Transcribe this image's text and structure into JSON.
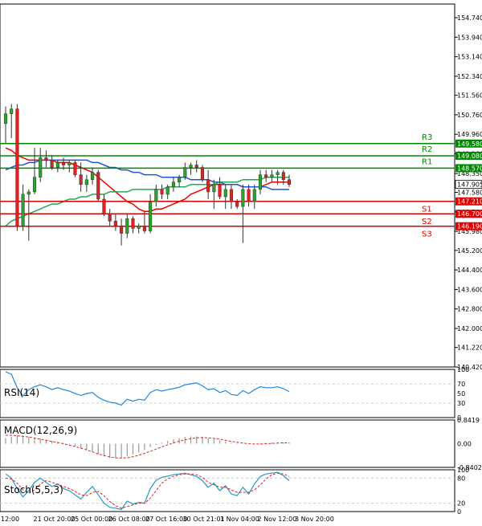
{
  "chart_data": [
    {
      "type": "candlestick",
      "panel": "price",
      "y_range": [
        140.42,
        155.3
      ],
      "y_ticks": [
        "154.740",
        "153.940",
        "153.140",
        "152.340",
        "151.560",
        "150.760",
        "149.960",
        "149.160",
        "148.350",
        "147.580",
        "146.780",
        "145.980",
        "145.200",
        "144.400",
        "143.600",
        "142.800",
        "142.000",
        "141.220",
        "140.420"
      ],
      "x_labels": [
        "12:00",
        "21 Oct 20:00",
        "25 Oct 00:00",
        "26 Oct 08:00",
        "27 Oct 16:00",
        "30 Oct 21:01",
        "1 Nov 04:00",
        "2 Nov 12:00",
        "3 Nov 20:00"
      ],
      "candles": [
        {
          "o": 150.4,
          "h": 151.1,
          "l": 149.6,
          "c": 150.8
        },
        {
          "o": 150.8,
          "h": 151.2,
          "l": 149.8,
          "c": 151.0
        },
        {
          "o": 151.0,
          "h": 151.2,
          "l": 146.0,
          "c": 146.2
        },
        {
          "o": 146.2,
          "h": 147.9,
          "l": 146.0,
          "c": 147.5
        },
        {
          "o": 147.5,
          "h": 147.7,
          "l": 145.6,
          "c": 147.6
        },
        {
          "o": 147.6,
          "h": 149.4,
          "l": 147.5,
          "c": 148.2
        },
        {
          "o": 148.2,
          "h": 149.4,
          "l": 148.0,
          "c": 149.0
        },
        {
          "o": 149.0,
          "h": 149.3,
          "l": 148.6,
          "c": 148.9
        },
        {
          "o": 148.9,
          "h": 149.1,
          "l": 148.5,
          "c": 148.6
        },
        {
          "o": 148.6,
          "h": 148.9,
          "l": 148.4,
          "c": 148.8
        },
        {
          "o": 148.8,
          "h": 149.0,
          "l": 148.5,
          "c": 148.7
        },
        {
          "o": 148.7,
          "h": 148.9,
          "l": 148.4,
          "c": 148.8
        },
        {
          "o": 148.8,
          "h": 148.9,
          "l": 148.2,
          "c": 148.3
        },
        {
          "o": 148.3,
          "h": 148.8,
          "l": 147.6,
          "c": 147.9
        },
        {
          "o": 147.9,
          "h": 148.3,
          "l": 147.6,
          "c": 148.1
        },
        {
          "o": 148.1,
          "h": 148.6,
          "l": 147.9,
          "c": 148.4
        },
        {
          "o": 148.4,
          "h": 148.5,
          "l": 147.2,
          "c": 147.3
        },
        {
          "o": 147.3,
          "h": 147.5,
          "l": 146.6,
          "c": 146.7
        },
        {
          "o": 146.7,
          "h": 146.9,
          "l": 146.2,
          "c": 146.4
        },
        {
          "o": 146.4,
          "h": 146.7,
          "l": 146.0,
          "c": 146.2
        },
        {
          "o": 146.2,
          "h": 146.5,
          "l": 145.4,
          "c": 145.9
        },
        {
          "o": 145.9,
          "h": 146.7,
          "l": 145.7,
          "c": 146.5
        },
        {
          "o": 146.5,
          "h": 146.6,
          "l": 145.9,
          "c": 146.1
        },
        {
          "o": 146.1,
          "h": 146.3,
          "l": 145.9,
          "c": 146.2
        },
        {
          "o": 146.2,
          "h": 146.8,
          "l": 145.9,
          "c": 146.0
        },
        {
          "o": 146.0,
          "h": 147.5,
          "l": 145.9,
          "c": 147.2
        },
        {
          "o": 147.2,
          "h": 147.9,
          "l": 147.0,
          "c": 147.7
        },
        {
          "o": 147.7,
          "h": 147.9,
          "l": 147.3,
          "c": 147.5
        },
        {
          "o": 147.5,
          "h": 147.9,
          "l": 147.3,
          "c": 147.8
        },
        {
          "o": 147.8,
          "h": 148.2,
          "l": 147.6,
          "c": 148.0
        },
        {
          "o": 148.0,
          "h": 148.3,
          "l": 147.8,
          "c": 148.2
        },
        {
          "o": 148.2,
          "h": 148.8,
          "l": 148.1,
          "c": 148.6
        },
        {
          "o": 148.6,
          "h": 148.8,
          "l": 148.3,
          "c": 148.7
        },
        {
          "o": 148.7,
          "h": 148.9,
          "l": 148.4,
          "c": 148.6
        },
        {
          "o": 148.6,
          "h": 148.7,
          "l": 148.0,
          "c": 148.1
        },
        {
          "o": 148.1,
          "h": 148.5,
          "l": 147.3,
          "c": 147.6
        },
        {
          "o": 147.6,
          "h": 148.1,
          "l": 146.9,
          "c": 147.9
        },
        {
          "o": 147.9,
          "h": 148.2,
          "l": 147.3,
          "c": 147.4
        },
        {
          "o": 147.4,
          "h": 147.9,
          "l": 146.9,
          "c": 147.7
        },
        {
          "o": 147.7,
          "h": 147.9,
          "l": 146.9,
          "c": 147.2
        },
        {
          "o": 147.2,
          "h": 147.3,
          "l": 146.9,
          "c": 147.0
        },
        {
          "o": 147.0,
          "h": 147.9,
          "l": 145.5,
          "c": 147.7
        },
        {
          "o": 147.7,
          "h": 147.9,
          "l": 147.0,
          "c": 147.2
        },
        {
          "o": 147.2,
          "h": 147.9,
          "l": 146.9,
          "c": 147.7
        },
        {
          "o": 147.7,
          "h": 148.5,
          "l": 147.5,
          "c": 148.3
        },
        {
          "o": 148.3,
          "h": 148.5,
          "l": 148.0,
          "c": 148.2
        },
        {
          "o": 148.2,
          "h": 148.5,
          "l": 148.0,
          "c": 148.3
        },
        {
          "o": 148.3,
          "h": 148.5,
          "l": 147.9,
          "c": 148.4
        },
        {
          "o": 148.4,
          "h": 148.5,
          "l": 147.9,
          "c": 148.1
        },
        {
          "o": 148.1,
          "h": 148.3,
          "l": 147.8,
          "c": 147.9
        }
      ],
      "moving_averages": [
        {
          "name": "",
          "color": "#ee0000",
          "values": [
            149.4,
            149.3,
            149.1,
            149.0,
            148.9,
            148.9,
            148.9,
            148.9,
            148.9,
            148.8,
            148.8,
            148.8,
            148.7,
            148.6,
            148.5,
            148.4,
            148.2,
            148.0,
            147.8,
            147.6,
            147.4,
            147.2,
            147.1,
            146.9,
            146.8,
            146.8,
            146.9,
            146.9,
            147.0,
            147.1,
            147.2,
            147.3,
            147.5,
            147.6,
            147.7,
            147.8,
            147.9,
            147.9,
            147.9,
            147.9,
            147.9,
            147.8,
            147.8,
            147.8,
            147.8,
            147.9,
            148.0,
            148.0,
            148.0,
            148.0
          ]
        },
        {
          "name": "",
          "color": "#2255dd",
          "values": [
            148.5,
            148.6,
            148.7,
            148.7,
            148.8,
            148.8,
            148.9,
            148.9,
            148.9,
            148.9,
            148.9,
            148.9,
            148.9,
            148.9,
            148.9,
            148.8,
            148.8,
            148.7,
            148.6,
            148.6,
            148.5,
            148.5,
            148.4,
            148.4,
            148.3,
            148.3,
            148.3,
            148.2,
            148.2,
            148.2,
            148.2,
            148.2,
            148.1,
            148.1,
            148.1,
            148.1,
            148.0,
            148.0,
            147.9,
            147.9,
            147.9,
            147.8,
            147.8,
            147.8,
            147.8,
            147.8,
            147.7,
            147.7,
            147.7,
            147.7
          ]
        },
        {
          "name": "",
          "color": "#22aa55",
          "values": [
            146.2,
            146.4,
            146.5,
            146.6,
            146.7,
            146.8,
            146.9,
            147.0,
            147.1,
            147.1,
            147.2,
            147.3,
            147.3,
            147.4,
            147.4,
            147.5,
            147.5,
            147.5,
            147.6,
            147.6,
            147.6,
            147.6,
            147.7,
            147.7,
            147.7,
            147.7,
            147.7,
            147.7,
            147.8,
            147.8,
            147.8,
            147.8,
            147.9,
            147.9,
            147.9,
            147.9,
            147.9,
            148.0,
            148.0,
            148.0,
            148.0,
            148.1,
            148.1,
            148.1,
            148.1,
            148.2,
            148.2,
            148.2,
            148.2,
            148.2
          ]
        }
      ],
      "levels": [
        {
          "name": "R3",
          "price": 149.58,
          "value_label": "149.580",
          "color": "#008800"
        },
        {
          "name": "R2",
          "price": 149.08,
          "value_label": "149.080",
          "color": "#008800"
        },
        {
          "name": "R1",
          "price": 148.57,
          "value_label": "148.570",
          "color": "#008800"
        },
        {
          "name": "S1",
          "price": 147.21,
          "value_label": "147.210",
          "color": "#dd0000"
        },
        {
          "name": "S2",
          "price": 146.7,
          "value_label": "146.700",
          "color": "#dd0000"
        },
        {
          "name": "S3",
          "price": 146.19,
          "value_label": "146.190",
          "color": "#dd0000"
        }
      ],
      "current_price": {
        "value": 147.905,
        "label": "147.905"
      }
    },
    {
      "type": "line",
      "panel": "rsi",
      "title": "RSI(14)",
      "y_range": [
        0,
        100
      ],
      "y_ticks": [
        "100",
        "70",
        "50",
        "30",
        "0"
      ],
      "values": [
        95,
        90,
        62,
        45,
        58,
        64,
        68,
        64,
        58,
        62,
        58,
        55,
        50,
        46,
        50,
        52,
        42,
        36,
        32,
        30,
        26,
        38,
        34,
        38,
        36,
        52,
        58,
        55,
        58,
        60,
        63,
        68,
        70,
        72,
        66,
        58,
        60,
        52,
        56,
        48,
        46,
        56,
        50,
        58,
        64,
        62,
        62,
        64,
        60,
        54
      ]
    },
    {
      "type": "line",
      "panel": "macd",
      "title": "MACD(12,26,9)",
      "y_range": [
        -0.8402,
        0.8419
      ],
      "y_ticks": [
        "0.8419",
        "0.00",
        "-0.8402"
      ],
      "histogram": [
        0.2,
        0.25,
        0.3,
        0.28,
        0.25,
        0.22,
        0.18,
        0.15,
        0.1,
        0.06,
        0.02,
        -0.03,
        -0.08,
        -0.15,
        -0.22,
        -0.3,
        -0.38,
        -0.45,
        -0.5,
        -0.52,
        -0.5,
        -0.45,
        -0.38,
        -0.3,
        -0.22,
        -0.12,
        -0.04,
        0.04,
        0.1,
        0.15,
        0.2,
        0.24,
        0.26,
        0.26,
        0.24,
        0.2,
        0.16,
        0.12,
        0.08,
        0.04,
        0.02,
        0.01,
        0.0,
        0.0,
        0.02,
        0.03,
        0.04,
        0.05,
        0.05,
        0.04
      ],
      "signal": [
        0.3,
        0.3,
        0.28,
        0.26,
        0.24,
        0.2,
        0.16,
        0.12,
        0.08,
        0.04,
        0.0,
        -0.05,
        -0.1,
        -0.16,
        -0.22,
        -0.29,
        -0.36,
        -0.42,
        -0.47,
        -0.5,
        -0.51,
        -0.5,
        -0.46,
        -0.41,
        -0.34,
        -0.27,
        -0.19,
        -0.11,
        -0.04,
        0.03,
        0.09,
        0.14,
        0.18,
        0.21,
        0.22,
        0.21,
        0.19,
        0.16,
        0.12,
        0.08,
        0.05,
        0.02,
        0.0,
        -0.01,
        -0.01,
        0.0,
        0.01,
        0.02,
        0.03,
        0.03
      ]
    },
    {
      "type": "line",
      "panel": "stoch",
      "title": "Stoch(5,5,3)",
      "y_range": [
        0,
        100
      ],
      "y_ticks": [
        "100",
        "80",
        "20",
        "0"
      ],
      "k_line": [
        90,
        80,
        55,
        35,
        50,
        70,
        80,
        70,
        60,
        66,
        55,
        50,
        40,
        30,
        46,
        60,
        40,
        20,
        10,
        8,
        5,
        25,
        18,
        22,
        20,
        55,
        75,
        82,
        85,
        88,
        90,
        92,
        88,
        84,
        74,
        58,
        68,
        50,
        62,
        42,
        38,
        58,
        42,
        66,
        84,
        90,
        92,
        94,
        86,
        74
      ],
      "d_line": [
        80,
        78,
        68,
        52,
        45,
        52,
        66,
        74,
        70,
        65,
        60,
        55,
        48,
        40,
        38,
        46,
        48,
        38,
        24,
        14,
        8,
        12,
        16,
        20,
        20,
        32,
        50,
        68,
        78,
        84,
        88,
        90,
        90,
        88,
        82,
        70,
        64,
        58,
        58,
        52,
        46,
        46,
        46,
        52,
        64,
        78,
        88,
        92,
        90,
        84
      ]
    }
  ]
}
